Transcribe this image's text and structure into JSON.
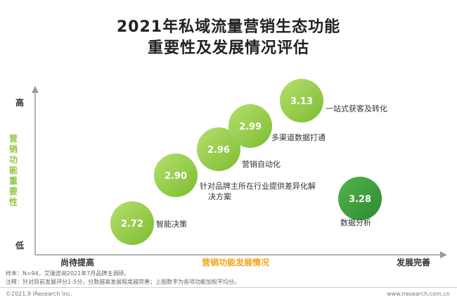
{
  "header": {
    "title_line1": "2021年私域流量营销生态功能",
    "title_line2": "重要性及发展情况评估"
  },
  "chart_data": {
    "type": "scatter",
    "title": "2021年私域流量营销生态功能重要性及发展情况评估",
    "ylabel": "营销功能重要性",
    "ylabel_high": "高",
    "ylabel_low": "低",
    "xlabel": "营销功能发展情况",
    "xlabel_low": "尚待提高",
    "xlabel_high": "发展完善",
    "value_meaning": "评分1-5",
    "points": [
      {
        "label": "智能决策",
        "value": 2.72,
        "color": "#8cc63f"
      },
      {
        "label": "针对品牌主所在行业提供差异化解决方案",
        "value": 2.9,
        "color": "#8cc63f"
      },
      {
        "label": "营销自动化",
        "value": 2.96,
        "color": "#8cc63f"
      },
      {
        "label": "多渠道数据打通",
        "value": 2.99,
        "color": "#8cc63f"
      },
      {
        "label": "一站式获客及转化",
        "value": 3.13,
        "color": "#8cc63f"
      },
      {
        "label": "数据分析",
        "value": 3.28,
        "color": "#3a9a3a"
      }
    ]
  },
  "notes": {
    "line1": "样本：N=94，艾瑞咨询2021年7月品牌主调研。",
    "line2": "注释：针对目前发展评分1-5分，分数越高发展程度越完善；上图数字为各项功能加权平均分。"
  },
  "footer": {
    "left": "©2021.9 iResearch Inc.",
    "right": "www.iresearch.com.cn"
  },
  "colors": {
    "accent": "#8cc63f",
    "dark_green": "#3a9a3a",
    "axis_label_orange": "#f2a51a"
  }
}
